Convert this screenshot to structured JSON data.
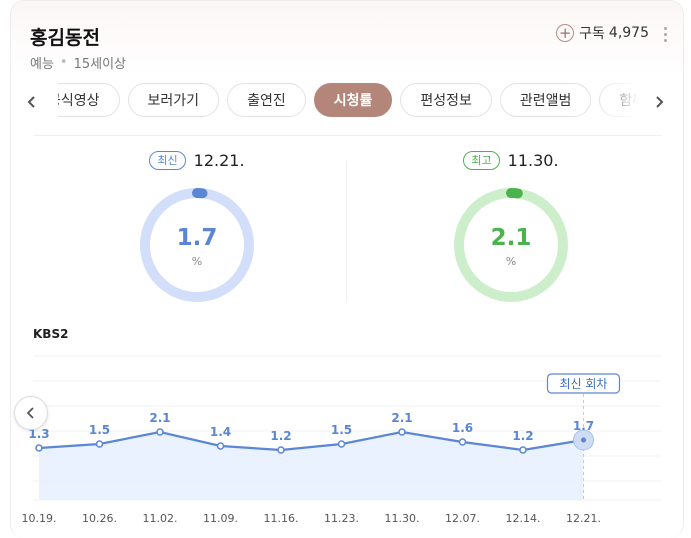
{
  "program": {
    "title": "홍김동전",
    "genre": "예능",
    "rating": "15세이상",
    "subscribe_label": "구독",
    "subscribers": "4,975"
  },
  "tabs": [
    {
      "label": "공식영상",
      "active": false
    },
    {
      "label": "보러가기",
      "active": false
    },
    {
      "label": "출연진",
      "active": false
    },
    {
      "label": "시청률",
      "active": true
    },
    {
      "label": "편성정보",
      "active": false
    },
    {
      "label": "관련앨범",
      "active": false
    },
    {
      "label": "함께 볼",
      "active": false
    }
  ],
  "stats": {
    "latest": {
      "badge": "최신",
      "date": "12.21.",
      "value": "1.7",
      "unit": "%",
      "color": "#5b86d4",
      "track": "#d2defa",
      "fraction": 0.017
    },
    "highest": {
      "badge": "최고",
      "date": "11.30.",
      "value": "2.1",
      "unit": "%",
      "color": "#4bb34b",
      "track": "#cdeecb",
      "fraction": 0.021
    }
  },
  "channel": "KBS2",
  "chart_data": {
    "type": "line",
    "categories": [
      "10.19.",
      "10.26.",
      "11.02.",
      "11.09.",
      "11.16.",
      "11.23.",
      "11.30.",
      "12.07.",
      "12.14.",
      "12.21."
    ],
    "series": [
      {
        "values": [
          1.3,
          1.5,
          2.1,
          1.4,
          1.2,
          1.5,
          2.1,
          1.6,
          1.2,
          1.7
        ],
        "labels": [
          "1.3",
          "1.5",
          "2.1",
          "1.4",
          "1.2",
          "1.5",
          "2.1",
          "1.6",
          "1.2",
          "1.7"
        ],
        "color": "#5b86d4"
      }
    ],
    "callout": "최신 회차",
    "grid": true
  }
}
